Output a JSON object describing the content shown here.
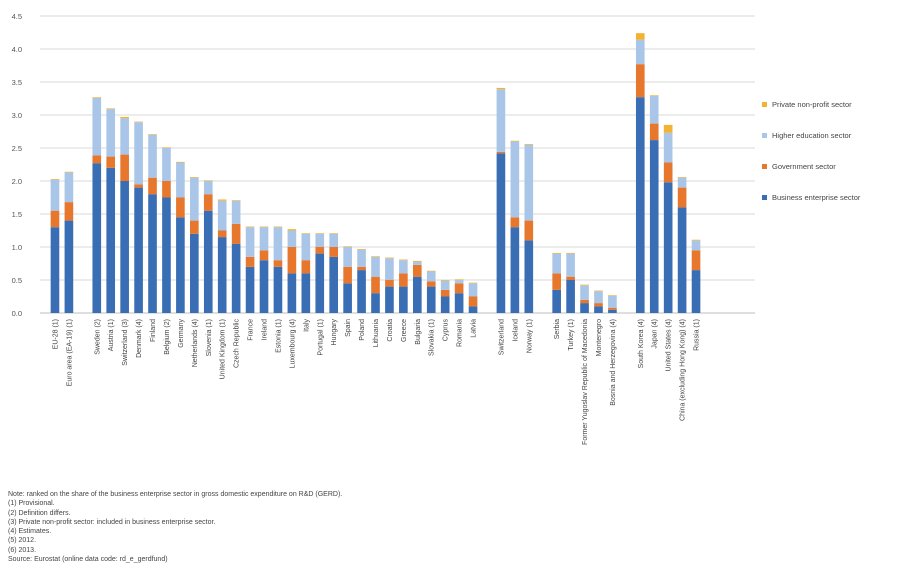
{
  "chart_data": {
    "type": "bar",
    "stacked": true,
    "ylim": [
      0,
      4.5
    ],
    "yticks": [
      0,
      0.5,
      1.0,
      1.5,
      2.0,
      2.5,
      3.0,
      3.5,
      4.0,
      4.5
    ],
    "ytick_labels": [
      "0.0",
      "0.5",
      "1.0",
      "1.5",
      "2.0",
      "2.5",
      "3.0",
      "3.5",
      "4.0",
      "4.5"
    ],
    "grid": true,
    "legend_position": "right",
    "series": [
      {
        "name": "Business enterprise sector",
        "color": "#3a6eb4"
      },
      {
        "name": "Government sector",
        "color": "#e8772e"
      },
      {
        "name": "Higher education sector",
        "color": "#a9c6e8"
      },
      {
        "name": "Private non-profit sector",
        "color": "#f2b233"
      }
    ],
    "categories": [
      {
        "label": "EU-28 (1)",
        "values": [
          1.3,
          0.25,
          0.47,
          0.01
        ]
      },
      {
        "label": "Euro area (EA-19) (1)",
        "values": [
          1.4,
          0.28,
          0.45,
          0.01
        ]
      },
      {
        "label": "",
        "gap": true
      },
      {
        "label": "Sweden (2)",
        "values": [
          2.27,
          0.12,
          0.87,
          0.01
        ]
      },
      {
        "label": "Austria (1)",
        "values": [
          2.2,
          0.17,
          0.72,
          0.01
        ]
      },
      {
        "label": "Switzerland (3)",
        "values": [
          2.0,
          0.4,
          0.55,
          0.02
        ]
      },
      {
        "label": "Denmark (4)",
        "values": [
          1.9,
          0.05,
          0.94,
          0.01
        ]
      },
      {
        "label": "Finland",
        "values": [
          1.8,
          0.25,
          0.65,
          0.01
        ]
      },
      {
        "label": "Belgium (2)",
        "values": [
          1.75,
          0.25,
          0.5,
          0.01
        ]
      },
      {
        "label": "Germany",
        "values": [
          1.45,
          0.3,
          0.53,
          0.01
        ]
      },
      {
        "label": "Netherlands (4)",
        "values": [
          1.2,
          0.2,
          0.65,
          0.01
        ]
      },
      {
        "label": "Slovenia (1)",
        "values": [
          1.55,
          0.25,
          0.2,
          0.01
        ]
      },
      {
        "label": "United Kingdom (1)",
        "values": [
          1.15,
          0.1,
          0.45,
          0.02
        ]
      },
      {
        "label": "Czech Republic",
        "values": [
          1.05,
          0.3,
          0.35,
          0.01
        ]
      },
      {
        "label": "France",
        "values": [
          0.7,
          0.15,
          0.45,
          0.01
        ]
      },
      {
        "label": "Ireland",
        "values": [
          0.8,
          0.15,
          0.35,
          0.01
        ]
      },
      {
        "label": "Estonia (1)",
        "values": [
          0.7,
          0.1,
          0.5,
          0.01
        ]
      },
      {
        "label": "Luxembourg (4)",
        "values": [
          0.6,
          0.4,
          0.25,
          0.02
        ]
      },
      {
        "label": "Italy",
        "values": [
          0.6,
          0.2,
          0.4,
          0.01
        ]
      },
      {
        "label": "Portugal (1)",
        "values": [
          0.9,
          0.1,
          0.2,
          0.01
        ]
      },
      {
        "label": "Hungary",
        "values": [
          0.85,
          0.15,
          0.2,
          0.01
        ]
      },
      {
        "label": "Spain",
        "values": [
          0.45,
          0.25,
          0.3,
          0.01
        ]
      },
      {
        "label": "Poland",
        "values": [
          0.65,
          0.05,
          0.26,
          0.01
        ]
      },
      {
        "label": "Lithuania",
        "values": [
          0.3,
          0.25,
          0.3,
          0.01
        ]
      },
      {
        "label": "Croatia",
        "values": [
          0.4,
          0.1,
          0.33,
          0.01
        ]
      },
      {
        "label": "Greece",
        "values": [
          0.4,
          0.2,
          0.2,
          0.01
        ]
      },
      {
        "label": "Bulgaria",
        "values": [
          0.55,
          0.18,
          0.05,
          0.01
        ]
      },
      {
        "label": "Slovakia (1)",
        "values": [
          0.4,
          0.08,
          0.15,
          0.01
        ]
      },
      {
        "label": "Cyprus",
        "values": [
          0.25,
          0.1,
          0.14,
          0.01
        ]
      },
      {
        "label": "Romania",
        "values": [
          0.3,
          0.15,
          0.05,
          0.01
        ]
      },
      {
        "label": "Latvia",
        "values": [
          0.1,
          0.15,
          0.2,
          0.01
        ]
      },
      {
        "label": "",
        "gap": true
      },
      {
        "label": "Switzerland",
        "values": [
          2.42,
          0.02,
          0.95,
          0.02
        ]
      },
      {
        "label": "Iceland",
        "values": [
          1.3,
          0.15,
          1.15,
          0.01
        ]
      },
      {
        "label": "Norway (1)",
        "values": [
          1.1,
          0.3,
          1.15,
          0.01
        ]
      },
      {
        "label": "",
        "gap": true
      },
      {
        "label": "Serbia",
        "values": [
          0.35,
          0.25,
          0.3,
          0.01
        ]
      },
      {
        "label": "Turkey (1)",
        "values": [
          0.5,
          0.05,
          0.35,
          0.01
        ]
      },
      {
        "label": "Former Yugoslav Republic of Macedonia",
        "values": [
          0.15,
          0.05,
          0.22,
          0.01
        ]
      },
      {
        "label": "Montenegro",
        "values": [
          0.1,
          0.05,
          0.18,
          0.01
        ]
      },
      {
        "label": "Bosnia and Herzegovina (4)",
        "values": [
          0.05,
          0.03,
          0.18,
          0.01
        ]
      },
      {
        "label": "",
        "gap": true
      },
      {
        "label": "South Korea (4)",
        "values": [
          3.27,
          0.5,
          0.37,
          0.1
        ]
      },
      {
        "label": "Japan (4)",
        "values": [
          2.62,
          0.25,
          0.42,
          0.01
        ]
      },
      {
        "label": "United States (4)",
        "values": [
          1.98,
          0.3,
          0.45,
          0.12
        ]
      },
      {
        "label": "China (excluding Hong Kong) (4)",
        "values": [
          1.6,
          0.3,
          0.15,
          0.01
        ]
      },
      {
        "label": "Russia (1)",
        "values": [
          0.65,
          0.3,
          0.15,
          0.01
        ]
      }
    ]
  },
  "notes": [
    "Note: ranked on the share of the business enterprise sector in gross domestic expenditure on R&D (GERD).",
    "(1) Provisional.",
    "(2) Definition differs.",
    "(3) Private non-profit sector: included in business enterprise sector.",
    "(4) Estimates.",
    "(5) 2012.",
    "(6) 2013.",
    "Source: Eurostat (online data code: rd_e_gerdfund)"
  ]
}
